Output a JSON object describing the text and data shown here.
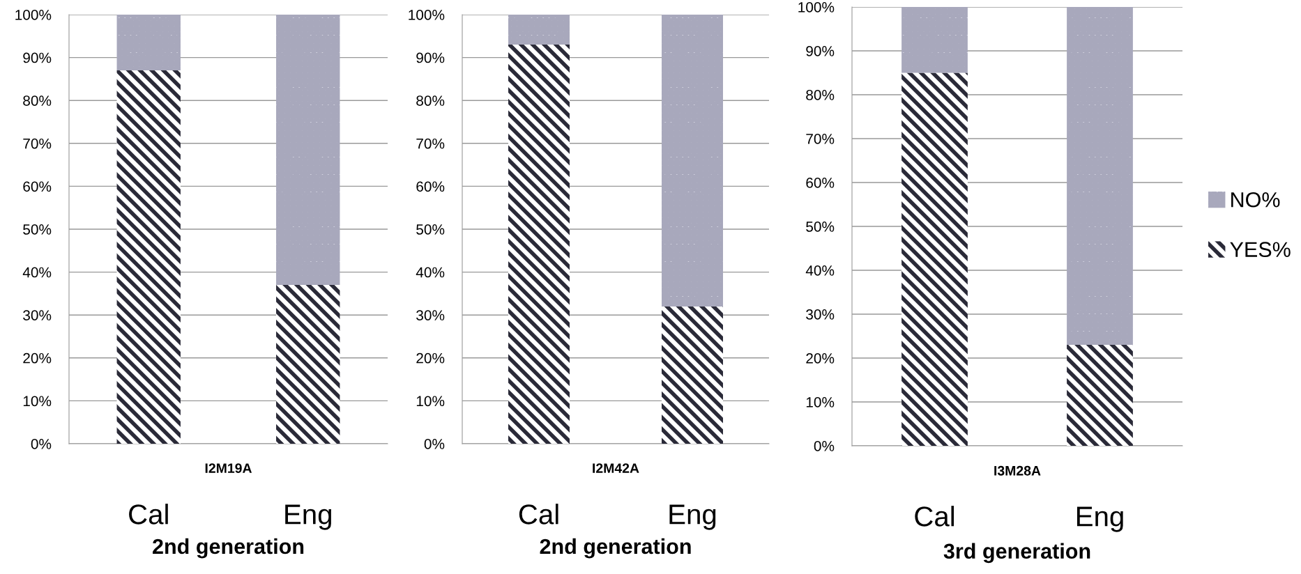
{
  "chart_data": [
    {
      "type": "bar",
      "stacked": true,
      "title": "2nd generation",
      "xlabel": "I2M19A",
      "categories": [
        "Cal",
        "Eng"
      ],
      "series": [
        {
          "color": "#2a2a38",
          "values": [
            87,
            37
          ]
        },
        {
          "color": "#a8a8bc",
          "values": [
            13,
            63
          ]
        }
      ],
      "ylim": [
        0,
        100
      ],
      "yticks": [
        {
          "value": 0,
          "label": "0%"
        },
        {
          "value": 10,
          "label": "10%"
        },
        {
          "value": 20,
          "label": "20%"
        },
        {
          "value": 30,
          "label": "30%"
        },
        {
          "value": 40,
          "label": "40%"
        },
        {
          "value": 50,
          "label": "50%"
        },
        {
          "value": 60,
          "label": "60%"
        },
        {
          "value": 70,
          "label": "70%"
        },
        {
          "value": 80,
          "label": "80%"
        },
        {
          "value": 90,
          "label": "90%"
        },
        {
          "value": 100,
          "label": "100%"
        }
      ],
      "grid": "y"
    },
    {
      "type": "bar",
      "stacked": true,
      "title": "2nd generation",
      "xlabel": "I2M42A",
      "categories": [
        "Cal",
        "Eng"
      ],
      "series": [
        {
          "color": "#2a2a38",
          "values": [
            93,
            32
          ]
        },
        {
          "color": "#a8a8bc",
          "values": [
            7,
            68
          ]
        }
      ],
      "ylim": [
        0,
        100
      ],
      "yticks": [
        {
          "value": 0,
          "label": "0%"
        },
        {
          "value": 10,
          "label": "10%"
        },
        {
          "value": 20,
          "label": "20%"
        },
        {
          "value": 30,
          "label": "30%"
        },
        {
          "value": 40,
          "label": "40%"
        },
        {
          "value": 50,
          "label": "50%"
        },
        {
          "value": 60,
          "label": "60%"
        },
        {
          "value": 70,
          "label": "70%"
        },
        {
          "value": 80,
          "label": "80%"
        },
        {
          "value": 90,
          "label": "90%"
        },
        {
          "value": 100,
          "label": "100%"
        }
      ],
      "grid": "y"
    },
    {
      "type": "bar",
      "stacked": true,
      "title": "3rd generation",
      "xlabel": "I3M28A",
      "categories": [
        "Cal",
        "Eng"
      ],
      "series": [
        {
          "name": "YES%",
          "color": "#2a2a38",
          "values": [
            85,
            23
          ]
        },
        {
          "name": "NO%",
          "color": "#a8a8bc",
          "values": [
            15,
            77
          ]
        }
      ],
      "ylim": [
        0,
        100
      ],
      "yticks": [
        {
          "value": 0,
          "label": "0%"
        },
        {
          "value": 10,
          "label": "10%"
        },
        {
          "value": 20,
          "label": "20%"
        },
        {
          "value": 30,
          "label": "30%"
        },
        {
          "value": 40,
          "label": "40%"
        },
        {
          "value": 50,
          "label": "50%"
        },
        {
          "value": 60,
          "label": "60%"
        },
        {
          "value": 70,
          "label": "70%"
        },
        {
          "value": 80,
          "label": "80%"
        },
        {
          "value": 90,
          "label": "90%"
        },
        {
          "value": 100,
          "label": "100%"
        }
      ],
      "grid": "y",
      "legend": "right"
    }
  ]
}
